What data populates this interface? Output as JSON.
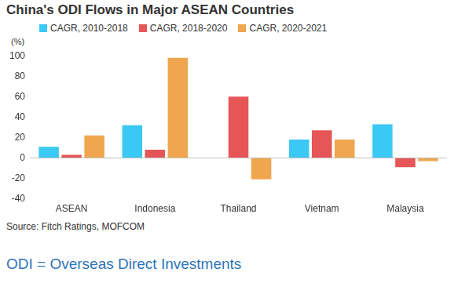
{
  "chart_data": {
    "type": "bar",
    "title": "China's ODI Flows in Major ASEAN Countries",
    "y_label": "(%)",
    "source": "Source: Fitch Ratings, MOFCOM",
    "note": "ODI = Overseas Direct Investments",
    "categories": [
      "ASEAN",
      "Indonesia",
      "Thailand",
      "Vietnam",
      "Malaysia"
    ],
    "series": [
      {
        "name": "CAGR, 2010-2018",
        "color": "#3cc8f4",
        "values": [
          11,
          32,
          0,
          18,
          33
        ]
      },
      {
        "name": "CAGR, 2018-2020",
        "color": "#e65657",
        "values": [
          3,
          8,
          60,
          27,
          -9
        ]
      },
      {
        "name": "CAGR, 2020-2021",
        "color": "#f0a64e",
        "values": [
          22,
          98,
          -21,
          18,
          -3
        ]
      }
    ],
    "ylim": [
      -40,
      100
    ],
    "yticks": [
      -40,
      -20,
      0,
      20,
      40,
      60,
      80,
      100
    ],
    "grid": false,
    "legend": "top"
  }
}
